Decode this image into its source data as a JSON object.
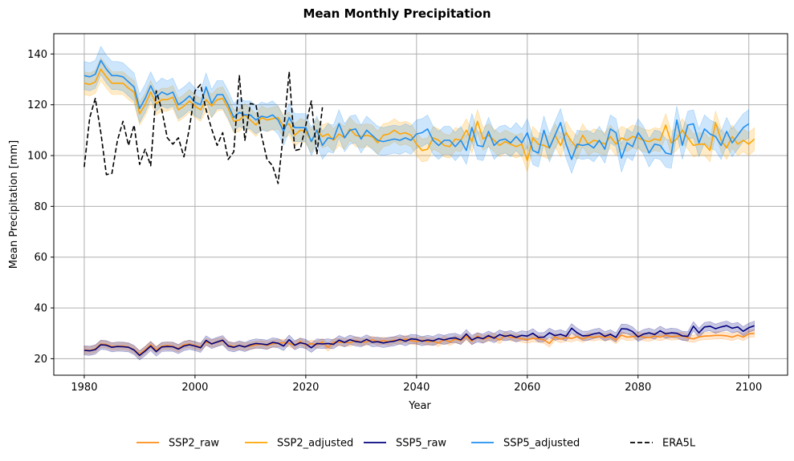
{
  "chart_data": {
    "type": "line",
    "title": "Mean Monthly Precipitation",
    "xlabel": "Year",
    "ylabel": "Mean Precipitation [mm]",
    "xlim": [
      1974.5,
      2107
    ],
    "ylim": [
      13.5,
      148
    ],
    "x_ticks": [
      1980,
      2000,
      2020,
      2040,
      2060,
      2080,
      2100
    ],
    "y_ticks": [
      20,
      40,
      60,
      80,
      100,
      120,
      140
    ],
    "grid": true,
    "legend_position": "bottom-center",
    "colors": {
      "SSP2_raw": "#ff8c1a",
      "SSP2_adjusted": "#ffa500",
      "SSP5_raw": "#00007f",
      "SSP5_adjusted": "#1e8ff0",
      "ERA5L": "#000000"
    },
    "series": [
      {
        "name": "SSP2_raw",
        "style": "solid",
        "x_start": 1980,
        "values": [
          23.5,
          23.2,
          23.9,
          25.8,
          25.6,
          24.8,
          24.9,
          25.0,
          24.6,
          23.6,
          21.8,
          23.5,
          25.5,
          23.5,
          24.9,
          25.2,
          24.9,
          24.0,
          25.5,
          25.8,
          25.2,
          24.7,
          26.5,
          26.0,
          26.5,
          27.0,
          25.3,
          24.8,
          25.2,
          24.8,
          25.0,
          25.5,
          25.7,
          25.2,
          25.9,
          26.1,
          26.3,
          26.1,
          25.2,
          26.8,
          25.4,
          25.9,
          25.5,
          26.6,
          24.4,
          26.5,
          26.5,
          26.4,
          26.3,
          27.2,
          26.5,
          26.6,
          27.5,
          26.7,
          27.1,
          26.7,
          27.3,
          27.1,
          27.8,
          27.1,
          26.8,
          27.3,
          26.7,
          26.9,
          26.2,
          27.6,
          26.6,
          27.7,
          27.1,
          28.8,
          26.9,
          28.9,
          27.7,
          28.3,
          28.6,
          27.3,
          29.2,
          28.4,
          28.3,
          27.9,
          27.5,
          28.0,
          27.9,
          27.4,
          26.0,
          28.6,
          27.7,
          28.3,
          28.0,
          28.7,
          27.8,
          28.7,
          28.4,
          28.8,
          28.4,
          28.7,
          27.3,
          29.3,
          28.5,
          28.7,
          29.0,
          28.5,
          28.3,
          28.9,
          28.5,
          29.2,
          28.7,
          28.9,
          29.0,
          28.2,
          27.8,
          28.6,
          28.9,
          29.0,
          29.2,
          29.2,
          29.0,
          28.5,
          29.3,
          28.5,
          29.8,
          30.0
        ],
        "band": 1.4
      },
      {
        "name": "SSP2_adjusted",
        "style": "solid",
        "x_start": 1980,
        "values": [
          128.5,
          128.0,
          129.0,
          134.0,
          131.0,
          128.5,
          128.5,
          128.5,
          126.5,
          125.0,
          116.5,
          120.0,
          125.0,
          120.5,
          122.0,
          122.0,
          123.0,
          118.0,
          119.5,
          121.5,
          119.5,
          118.0,
          122.0,
          119.5,
          122.0,
          122.5,
          118.5,
          113.5,
          114.0,
          116.0,
          114.0,
          112.0,
          115.0,
          114.0,
          114.5,
          115.0,
          111.5,
          112.5,
          108.0,
          110.0,
          109.5,
          105.5,
          110.0,
          107.5,
          108.5,
          106.0,
          108.5,
          107.0,
          110.5,
          108.0,
          107.5,
          108.0,
          107.5,
          105.0,
          108.0,
          108.5,
          110.0,
          108.5,
          109.0,
          108.0,
          104.5,
          102.0,
          102.5,
          107.0,
          106.0,
          104.0,
          103.5,
          106.5,
          106.0,
          110.0,
          105.5,
          113.5,
          106.5,
          108.0,
          106.0,
          104.0,
          105.5,
          104.5,
          103.5,
          104.5,
          98.0,
          107.0,
          104.5,
          104.0,
          103.0,
          108.0,
          104.0,
          109.0,
          105.5,
          103.0,
          108.0,
          104.5,
          106.0,
          105.5,
          104.5,
          107.5,
          104.5,
          107.0,
          106.0,
          107.5,
          107.0,
          106.0,
          105.5,
          106.5,
          106.0,
          112.0,
          105.0,
          106.5,
          110.0,
          107.0,
          104.0,
          104.5,
          104.5,
          102.0,
          113.0,
          106.0,
          103.0,
          107.5,
          104.5,
          106.0,
          104.5,
          106.5
        ],
        "band": 4.5
      },
      {
        "name": "SSP5_raw",
        "style": "solid",
        "x_start": 1980,
        "values": [
          23.3,
          23.1,
          23.6,
          25.5,
          25.3,
          24.5,
          24.8,
          24.7,
          24.5,
          23.4,
          21.3,
          23.0,
          25.0,
          22.8,
          24.6,
          24.8,
          24.7,
          23.8,
          25.0,
          25.5,
          25.0,
          24.3,
          27.2,
          25.8,
          26.6,
          27.3,
          25.0,
          24.5,
          25.2,
          24.6,
          25.5,
          26.0,
          25.8,
          25.5,
          26.4,
          26.1,
          25.0,
          27.5,
          25.3,
          26.3,
          25.8,
          24.3,
          26.0,
          25.8,
          26.0,
          25.7,
          27.3,
          26.4,
          27.5,
          26.8,
          26.5,
          27.6,
          26.5,
          26.7,
          26.2,
          26.6,
          26.9,
          27.6,
          26.9,
          27.8,
          27.6,
          26.9,
          27.4,
          27.0,
          27.9,
          27.4,
          28.0,
          28.2,
          27.4,
          29.7,
          27.4,
          28.4,
          27.9,
          29.1,
          28.1,
          29.5,
          28.8,
          29.3,
          28.4,
          29.2,
          28.9,
          30.0,
          28.4,
          28.5,
          30.2,
          29.1,
          29.6,
          28.8,
          32.0,
          30.2,
          29.0,
          29.1,
          29.8,
          30.2,
          28.8,
          29.6,
          28.4,
          31.8,
          31.7,
          30.7,
          28.6,
          29.7,
          30.2,
          29.5,
          31.0,
          29.8,
          30.2,
          30.0,
          29.0,
          28.8,
          32.8,
          30.2,
          32.5,
          32.8,
          31.8,
          32.5,
          33.0,
          32.0,
          32.5,
          30.8,
          32.2,
          33.0
        ],
        "band": 1.8
      },
      {
        "name": "SSP5_adjusted",
        "style": "solid",
        "x_start": 1980,
        "values": [
          131.5,
          131.0,
          132.0,
          137.5,
          134.0,
          131.5,
          131.5,
          131.0,
          129.0,
          127.0,
          118.5,
          122.5,
          127.5,
          123.0,
          125.0,
          124.0,
          125.0,
          120.0,
          121.5,
          123.5,
          121.0,
          120.0,
          127.0,
          120.5,
          124.0,
          124.0,
          120.0,
          115.0,
          117.0,
          116.0,
          116.0,
          114.0,
          115.5,
          115.0,
          116.0,
          114.0,
          109.5,
          115.0,
          111.0,
          111.0,
          111.0,
          105.5,
          110.0,
          104.0,
          107.0,
          106.5,
          112.5,
          107.0,
          110.0,
          110.5,
          106.5,
          110.0,
          108.0,
          106.0,
          105.5,
          106.0,
          106.5,
          106.0,
          107.0,
          106.0,
          108.5,
          109.0,
          110.5,
          106.0,
          104.0,
          106.0,
          106.0,
          103.5,
          106.0,
          102.0,
          111.0,
          104.0,
          103.5,
          109.5,
          104.0,
          106.0,
          106.5,
          105.0,
          107.5,
          105.0,
          109.0,
          102.0,
          101.0,
          110.0,
          103.0,
          108.0,
          113.0,
          104.5,
          98.5,
          104.5,
          104.0,
          104.5,
          103.0,
          106.0,
          102.5,
          110.5,
          109.0,
          99.0,
          105.0,
          103.5,
          109.0,
          106.0,
          101.0,
          104.5,
          104.0,
          101.0,
          100.5,
          114.0,
          104.0,
          112.0,
          112.5,
          105.0,
          110.5,
          108.5,
          107.5,
          104.0,
          109.5,
          105.0,
          108.0,
          111.0,
          112.5
        ],
        "band": 5.5
      },
      {
        "name": "ERA5L",
        "style": "dashed",
        "x_start": 1980,
        "values": [
          95.5,
          115.0,
          122.5,
          109.0,
          92.5,
          93.0,
          106.0,
          113.5,
          104.0,
          112.0,
          96.5,
          102.5,
          96.0,
          125.5,
          118.0,
          107.0,
          104.5,
          107.0,
          99.5,
          111.0,
          125.5,
          128.0,
          118.0,
          110.5,
          104.0,
          109.0,
          98.5,
          101.5,
          131.5,
          106.0,
          120.5,
          120.0,
          108.0,
          98.5,
          96.0,
          89.0,
          110.0,
          133.0,
          102.0,
          102.5,
          112.0,
          121.5,
          100.5,
          119.0
        ]
      }
    ]
  }
}
